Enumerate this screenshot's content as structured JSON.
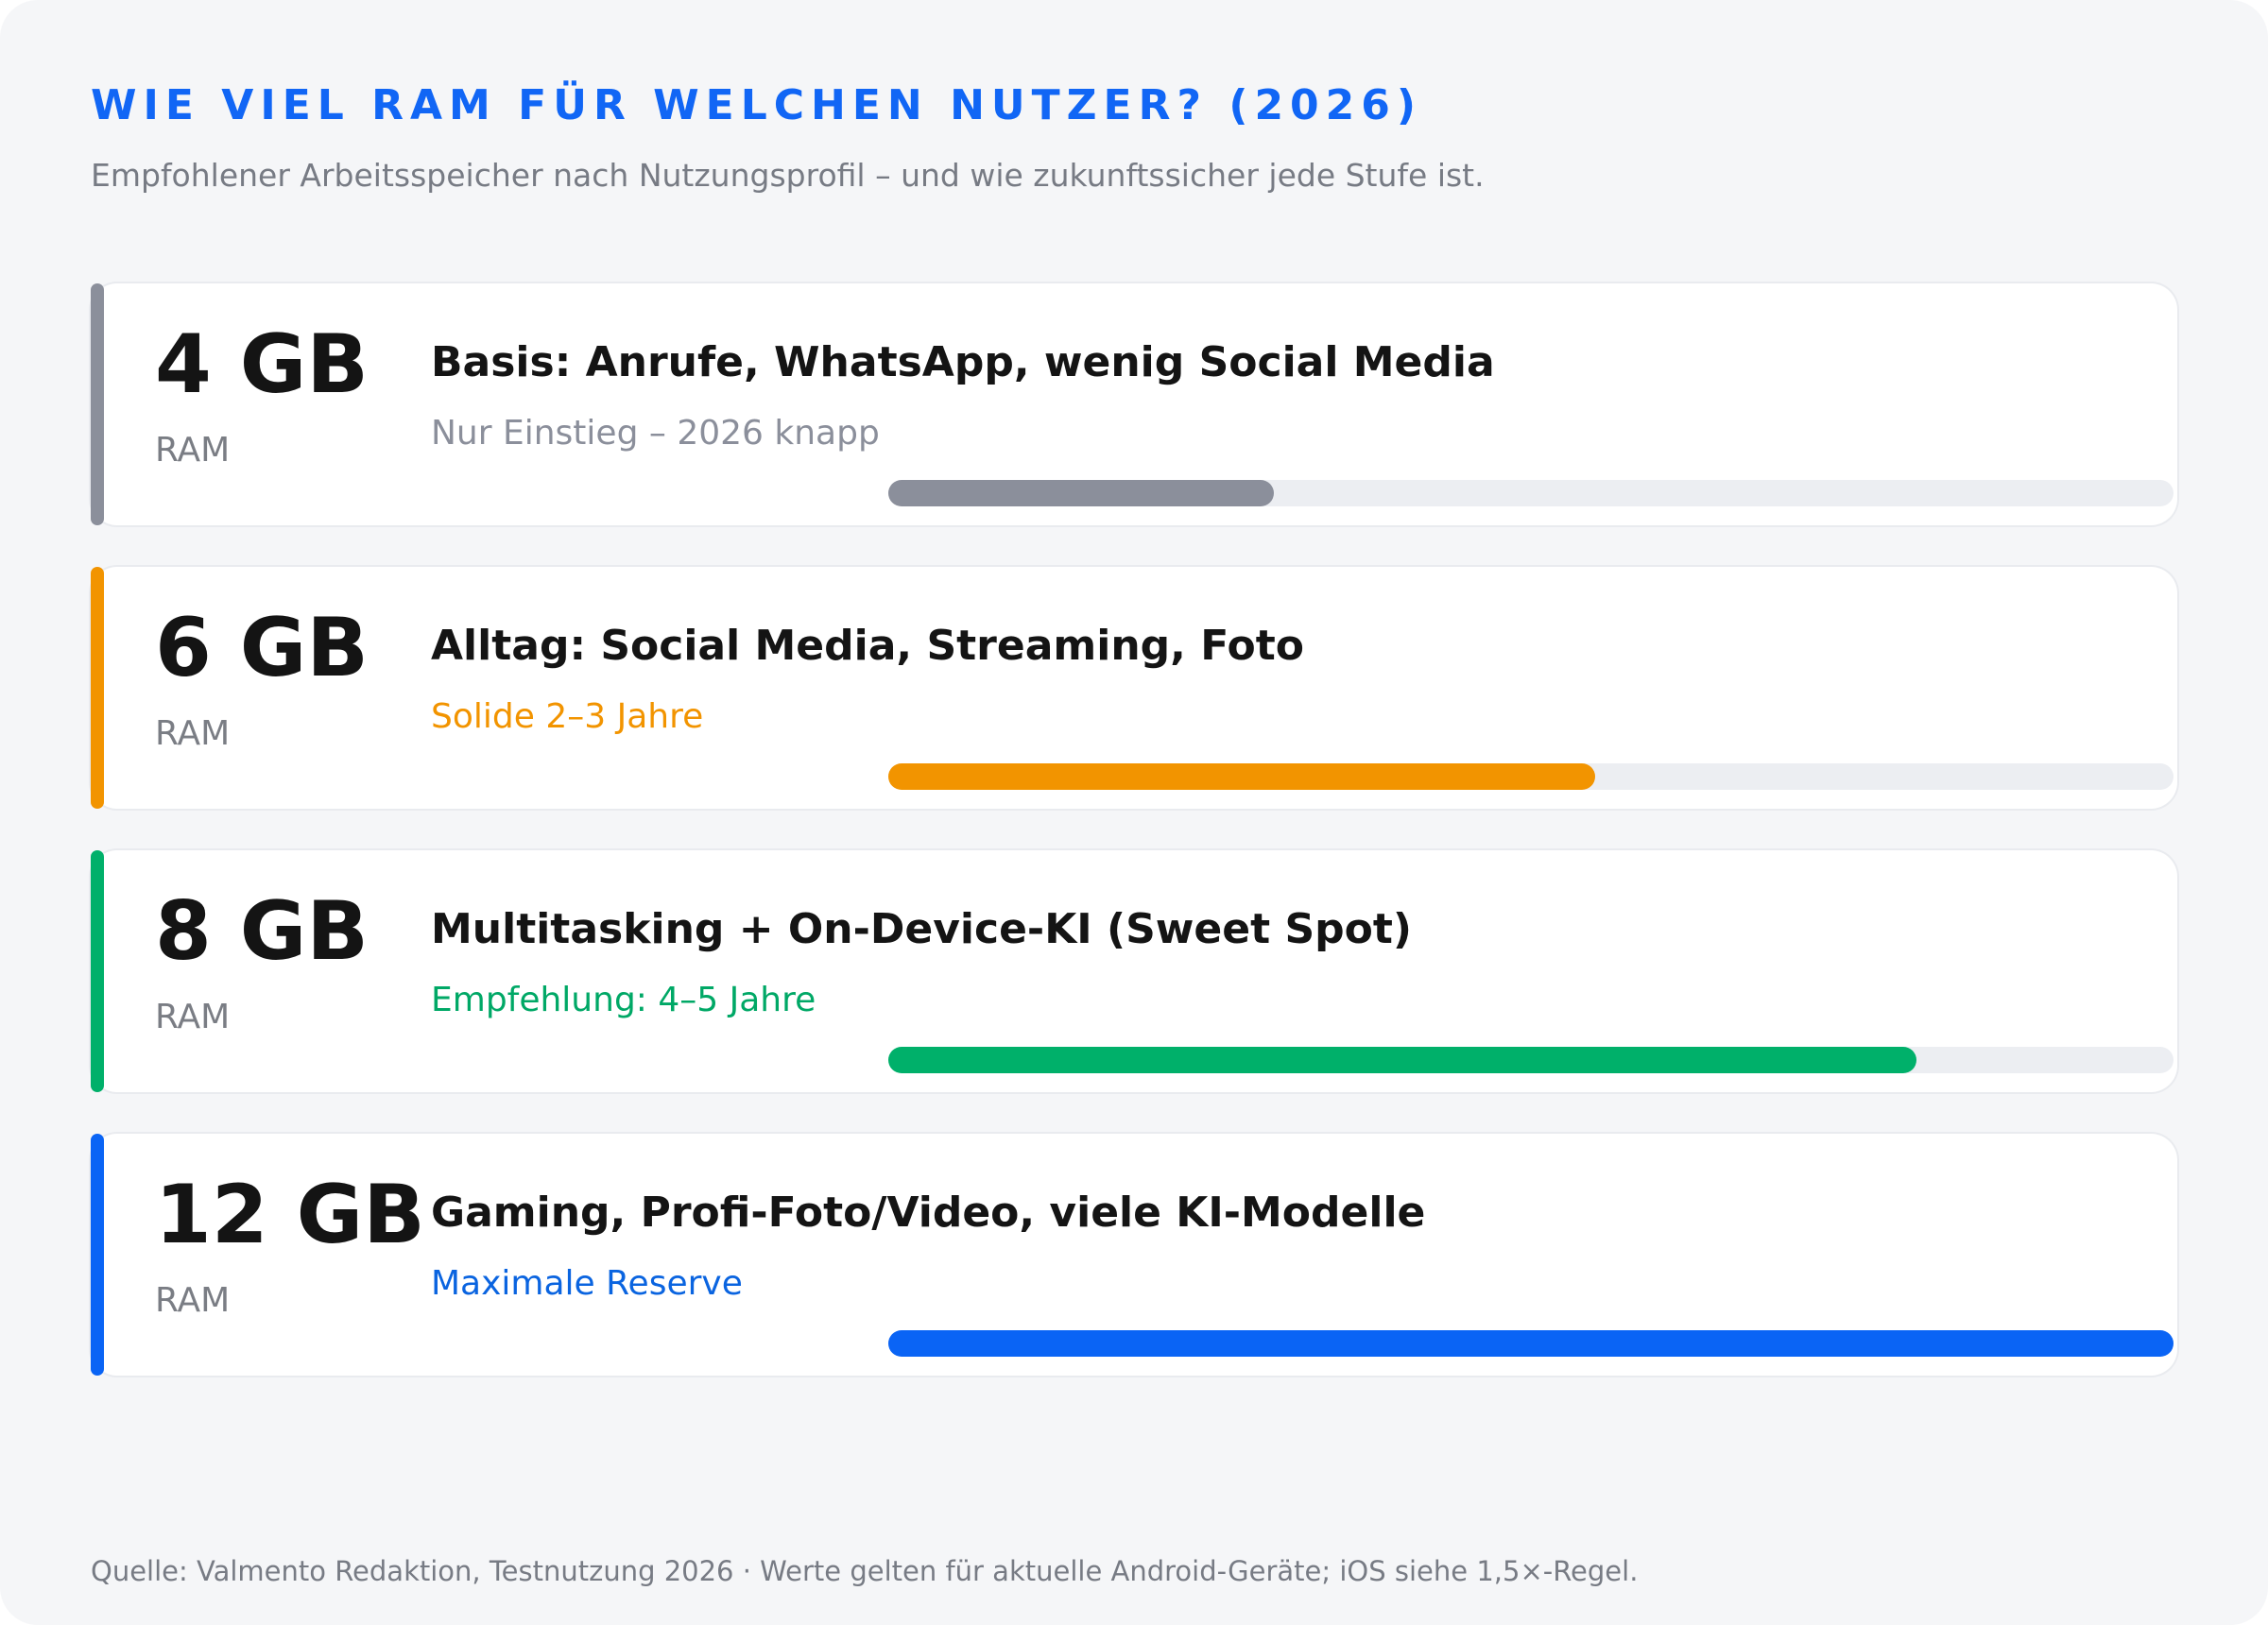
{
  "header": {
    "title": "WIE VIEL RAM FÜR WELCHEN NUTZER? (2026)",
    "subtitle": "Empfohlener Arbeitsspeicher nach Nutzungsprofil – und wie zukunftssicher jede Stufe ist."
  },
  "colors": {
    "title": "#1166f5",
    "tier_4gb": "#8b8f9b",
    "tier_6gb": "#f29400",
    "tier_8gb": "#00b06a",
    "tier_12gb": "#0a64f5"
  },
  "chart_data": {
    "type": "bar",
    "orientation": "horizontal",
    "title": "WIE VIEL RAM FÜR WELCHEN NUTZER? (2026)",
    "subtitle": "Empfohlener Arbeitsspeicher nach Nutzungsprofil – und wie zukunftssicher jede Stufe ist.",
    "grid": false,
    "scale_max": 1.0,
    "tiers": [
      {
        "amount": "4 GB",
        "unit": "RAM",
        "use": "Basis: Anrufe, WhatsApp, wenig Social Media",
        "note": "Nur Einstieg – 2026 knapp",
        "color": "#8b8f9b",
        "note_color": "#8b8f9b",
        "value": 0.3
      },
      {
        "amount": "6 GB",
        "unit": "RAM",
        "use": "Alltag: Social Media, Streaming, Foto",
        "note": "Solide 2–3 Jahre",
        "color": "#f29400",
        "note_color": "#f29400",
        "value": 0.55
      },
      {
        "amount": "8 GB",
        "unit": "RAM",
        "use": "Multitasking + On-Device-KI (Sweet Spot)",
        "note": "Empfehlung: 4–5 Jahre",
        "color": "#00b06a",
        "note_color": "#00a866",
        "value": 0.8
      },
      {
        "amount": "12 GB",
        "unit": "RAM",
        "use": "Gaming, Profi-Foto/Video, viele KI-Modelle",
        "note": "Maximale Reserve",
        "color": "#0a64f5",
        "note_color": "#0a64e0",
        "value": 1.0
      }
    ]
  },
  "footer": {
    "source": "Quelle: Valmento Redaktion, Testnutzung 2026 · Werte gelten für aktuelle Android-Geräte; iOS siehe 1,5×-Regel."
  }
}
